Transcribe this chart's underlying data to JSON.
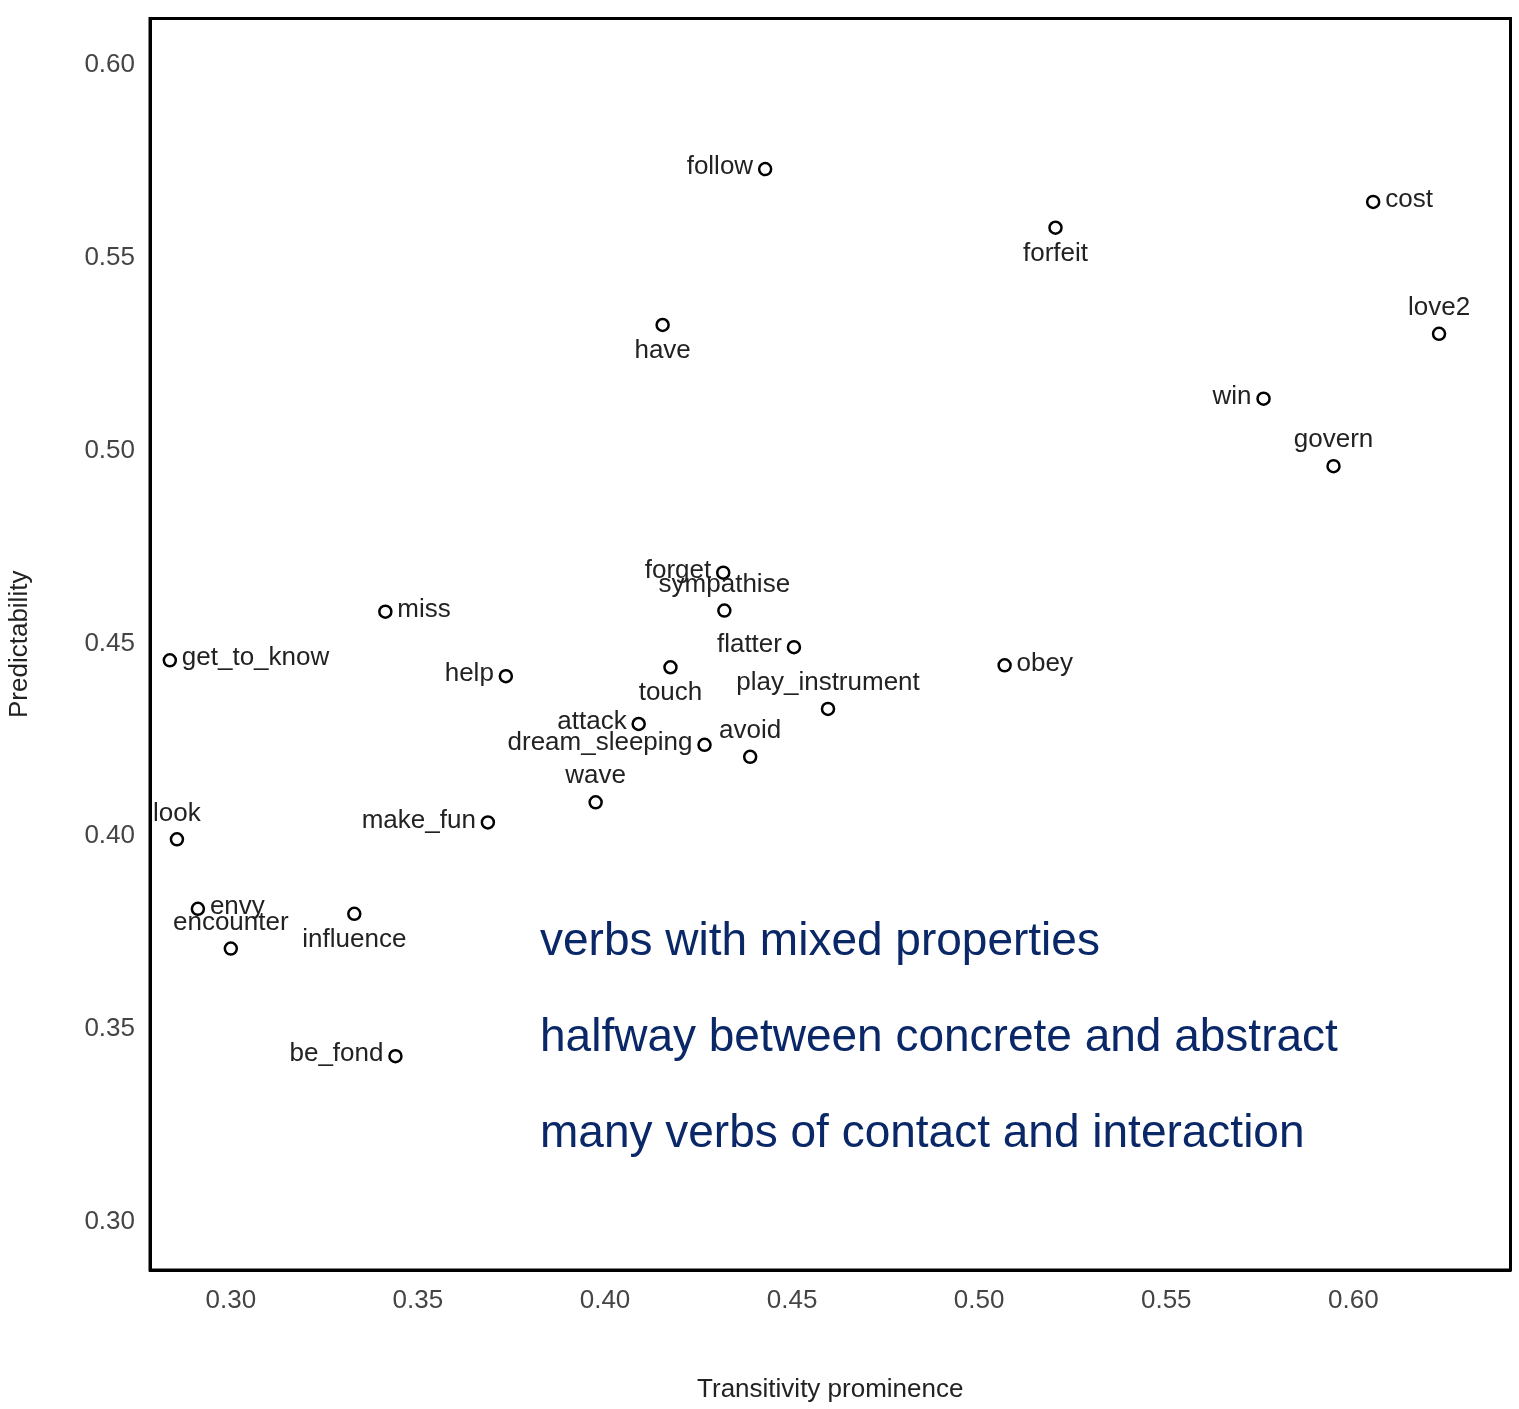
{
  "chart_data": {
    "type": "scatter",
    "xlabel": "Transitivity prominence",
    "ylabel": "Predictability",
    "xlim": [
      0.2784,
      0.642
    ],
    "ylim": [
      0.2876,
      0.6119
    ],
    "xticks": [
      {
        "value": 0.3,
        "label": "0.30"
      },
      {
        "value": 0.35,
        "label": "0.35"
      },
      {
        "value": 0.4,
        "label": "0.40"
      },
      {
        "value": 0.45,
        "label": "0.45"
      },
      {
        "value": 0.5,
        "label": "0.50"
      },
      {
        "value": 0.55,
        "label": "0.55"
      },
      {
        "value": 0.6,
        "label": "0.60"
      }
    ],
    "yticks": [
      {
        "value": 0.3,
        "label": "0.30"
      },
      {
        "value": 0.35,
        "label": "0.35"
      },
      {
        "value": 0.4,
        "label": "0.40"
      },
      {
        "value": 0.45,
        "label": "0.45"
      },
      {
        "value": 0.5,
        "label": "0.50"
      },
      {
        "value": 0.55,
        "label": "0.55"
      },
      {
        "value": 0.6,
        "label": "0.60"
      }
    ],
    "grid": false,
    "legend": false,
    "marker": "circle",
    "series": [
      {
        "color": "#000000",
        "x": [
          0.4428,
          0.6053,
          0.5204,
          0.4154,
          0.6229,
          0.576,
          0.5947,
          0.4316,
          0.4319,
          0.3413,
          0.4505,
          0.2837,
          0.5068,
          0.4175,
          0.3735,
          0.4596,
          0.409,
          0.4266,
          0.4388,
          0.3975,
          0.3687,
          0.2856,
          0.2912,
          0.333,
          0.3,
          0.344
        ],
        "values": [
          0.5729,
          0.5644,
          0.5577,
          0.5325,
          0.5302,
          0.5134,
          0.4959,
          0.4683,
          0.4585,
          0.4582,
          0.449,
          0.4456,
          0.4443,
          0.4438,
          0.4415,
          0.433,
          0.4291,
          0.4237,
          0.4206,
          0.4088,
          0.4036,
          0.3992,
          0.3812,
          0.3799,
          0.3709,
          0.343
        ]
      }
    ],
    "annotations": [
      {
        "text": "follow",
        "x": 0.4428,
        "y": 0.5729
      },
      {
        "text": "cost",
        "x": 0.6053,
        "y": 0.5644
      },
      {
        "text": "forfeit",
        "x": 0.5204,
        "y": 0.5577
      },
      {
        "text": "have",
        "x": 0.4154,
        "y": 0.5325
      },
      {
        "text": "love2",
        "x": 0.6229,
        "y": 0.5302
      },
      {
        "text": "win",
        "x": 0.576,
        "y": 0.5134
      },
      {
        "text": "govern",
        "x": 0.5947,
        "y": 0.4959
      },
      {
        "text": "forget",
        "x": 0.4316,
        "y": 0.4683
      },
      {
        "text": "sympathise",
        "x": 0.4319,
        "y": 0.4585
      },
      {
        "text": "miss",
        "x": 0.3413,
        "y": 0.4582
      },
      {
        "text": "flatter",
        "x": 0.4505,
        "y": 0.449
      },
      {
        "text": "get_to_know",
        "x": 0.2837,
        "y": 0.4456
      },
      {
        "text": "obey",
        "x": 0.5068,
        "y": 0.4443
      },
      {
        "text": "touch",
        "x": 0.4175,
        "y": 0.4438
      },
      {
        "text": "help",
        "x": 0.3735,
        "y": 0.4415
      },
      {
        "text": "play_instrument",
        "x": 0.4596,
        "y": 0.433
      },
      {
        "text": "attack",
        "x": 0.409,
        "y": 0.4291
      },
      {
        "text": "dream_sleeping",
        "x": 0.4266,
        "y": 0.4237
      },
      {
        "text": "avoid",
        "x": 0.4388,
        "y": 0.4206
      },
      {
        "text": "wave",
        "x": 0.3975,
        "y": 0.4088
      },
      {
        "text": "make_fun",
        "x": 0.3687,
        "y": 0.4036
      },
      {
        "text": "look",
        "x": 0.2856,
        "y": 0.3992
      },
      {
        "text": "envy",
        "x": 0.2912,
        "y": 0.3812
      },
      {
        "text": "influence",
        "x": 0.333,
        "y": 0.3799
      },
      {
        "text": "encounter",
        "x": 0.3,
        "y": 0.3709
      },
      {
        "text": "be_fond",
        "x": 0.344,
        "y": 0.343
      },
      "verbs with mixed properties",
      "halfway between concrete and abstract",
      "many verbs of contact and interaction"
    ]
  }
}
